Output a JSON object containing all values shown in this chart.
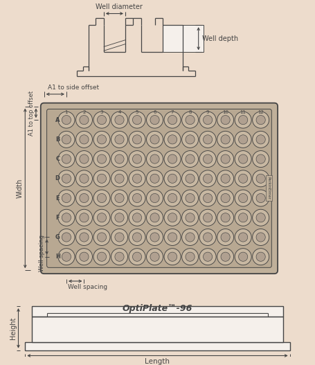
{
  "bg_color": "#eddccc",
  "line_color": "#555555",
  "dark_line": "#444444",
  "title": "OptiPlate™-96",
  "row_labels": [
    "A",
    "B",
    "C",
    "D",
    "E",
    "F",
    "G",
    "H"
  ],
  "col_labels": [
    "1",
    "2",
    "3",
    "4",
    "5",
    "6",
    "7",
    "8",
    "9",
    "10",
    "11",
    "12"
  ],
  "well_face": "#c8b8a2",
  "plate_face": "#c0b09a",
  "plate_edge": "#444444",
  "white": "#f5f0eb",
  "annotations": {
    "well_diameter": "Well diameter",
    "well_depth": "Well depth",
    "a1_side": "A1 to side offset",
    "a1_top": "A1 to top offset",
    "well_spacing_v": "Well spacing",
    "well_spacing_h": "Well spacing",
    "width": "Width",
    "height": "Height",
    "length": "Length"
  }
}
